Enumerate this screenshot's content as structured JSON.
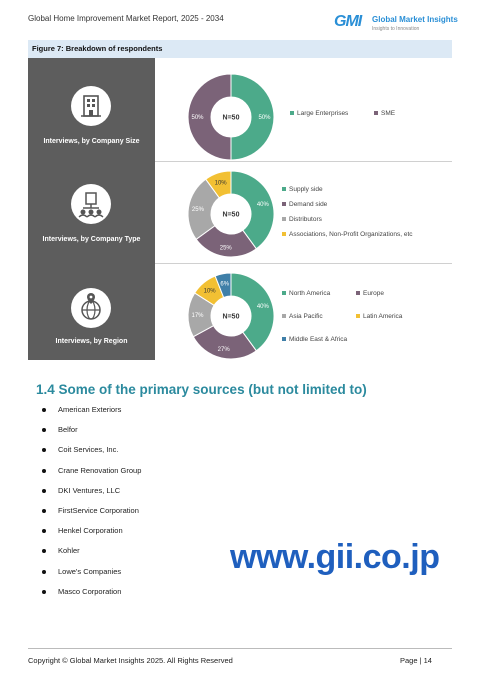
{
  "header": {
    "report_title": "Global Home Improvement Market Report, 2025 - 2034",
    "logo_mark": "GMI",
    "logo_name": "Global Market Insights",
    "logo_tagline": "Insights to Innovation"
  },
  "figure": {
    "title": "Figure 7:  Breakdown of respondents",
    "panels": [
      {
        "label": "Interviews, by Company Size",
        "icon": "building-icon"
      },
      {
        "label": "Interviews, by Company Type",
        "icon": "organization-icon"
      },
      {
        "label": "Interviews, by Region",
        "icon": "globe-pin-icon"
      }
    ]
  },
  "chart_data": [
    {
      "type": "pie",
      "center_label": "N=50",
      "categories": [
        "Large Enterprises",
        "SME"
      ],
      "values": [
        50,
        50
      ],
      "data_labels": [
        "50%",
        "50%"
      ],
      "colors": [
        "#4caa8a",
        "#7b6378"
      ],
      "legend_position": "right"
    },
    {
      "type": "pie",
      "center_label": "N=50",
      "categories": [
        "Supply side",
        "Demand side",
        "Distributors",
        "Associations, Non-Profit Organizations, etc"
      ],
      "values": [
        40,
        25,
        25,
        10
      ],
      "data_labels": [
        "40%",
        "25%",
        "25%",
        "10%"
      ],
      "colors": [
        "#4caa8a",
        "#7b6378",
        "#a8a8a8",
        "#f2c033"
      ],
      "legend_position": "right"
    },
    {
      "type": "pie",
      "center_label": "N=50",
      "categories": [
        "North America",
        "Europe",
        "Asia Pacific",
        "Latin America",
        "Middle East & Africa"
      ],
      "values": [
        40,
        27,
        17,
        10,
        6
      ],
      "data_labels": [
        "40%",
        "27%",
        "17%",
        "10%",
        "6%"
      ],
      "colors": [
        "#4caa8a",
        "#7b6378",
        "#a8a8a8",
        "#f2c033",
        "#3f7fa8"
      ],
      "legend_position": "right"
    }
  ],
  "section": {
    "heading": "1.4 Some of the primary sources (but not limited to)",
    "sources": [
      "American Exteriors",
      "Belfor",
      "Coit Services, Inc.",
      "Crane Renovation Group",
      "DKI Ventures, LLC",
      "FirstService Corporation",
      "Henkel Corporation",
      "Kohler",
      "Lowe's Companies",
      "Masco Corporation"
    ]
  },
  "watermark": "www.gii.co.jp",
  "footer": {
    "copyright": "Copyright © Global Market Insights 2025. All Rights Reserved",
    "page": "Page | 14"
  }
}
